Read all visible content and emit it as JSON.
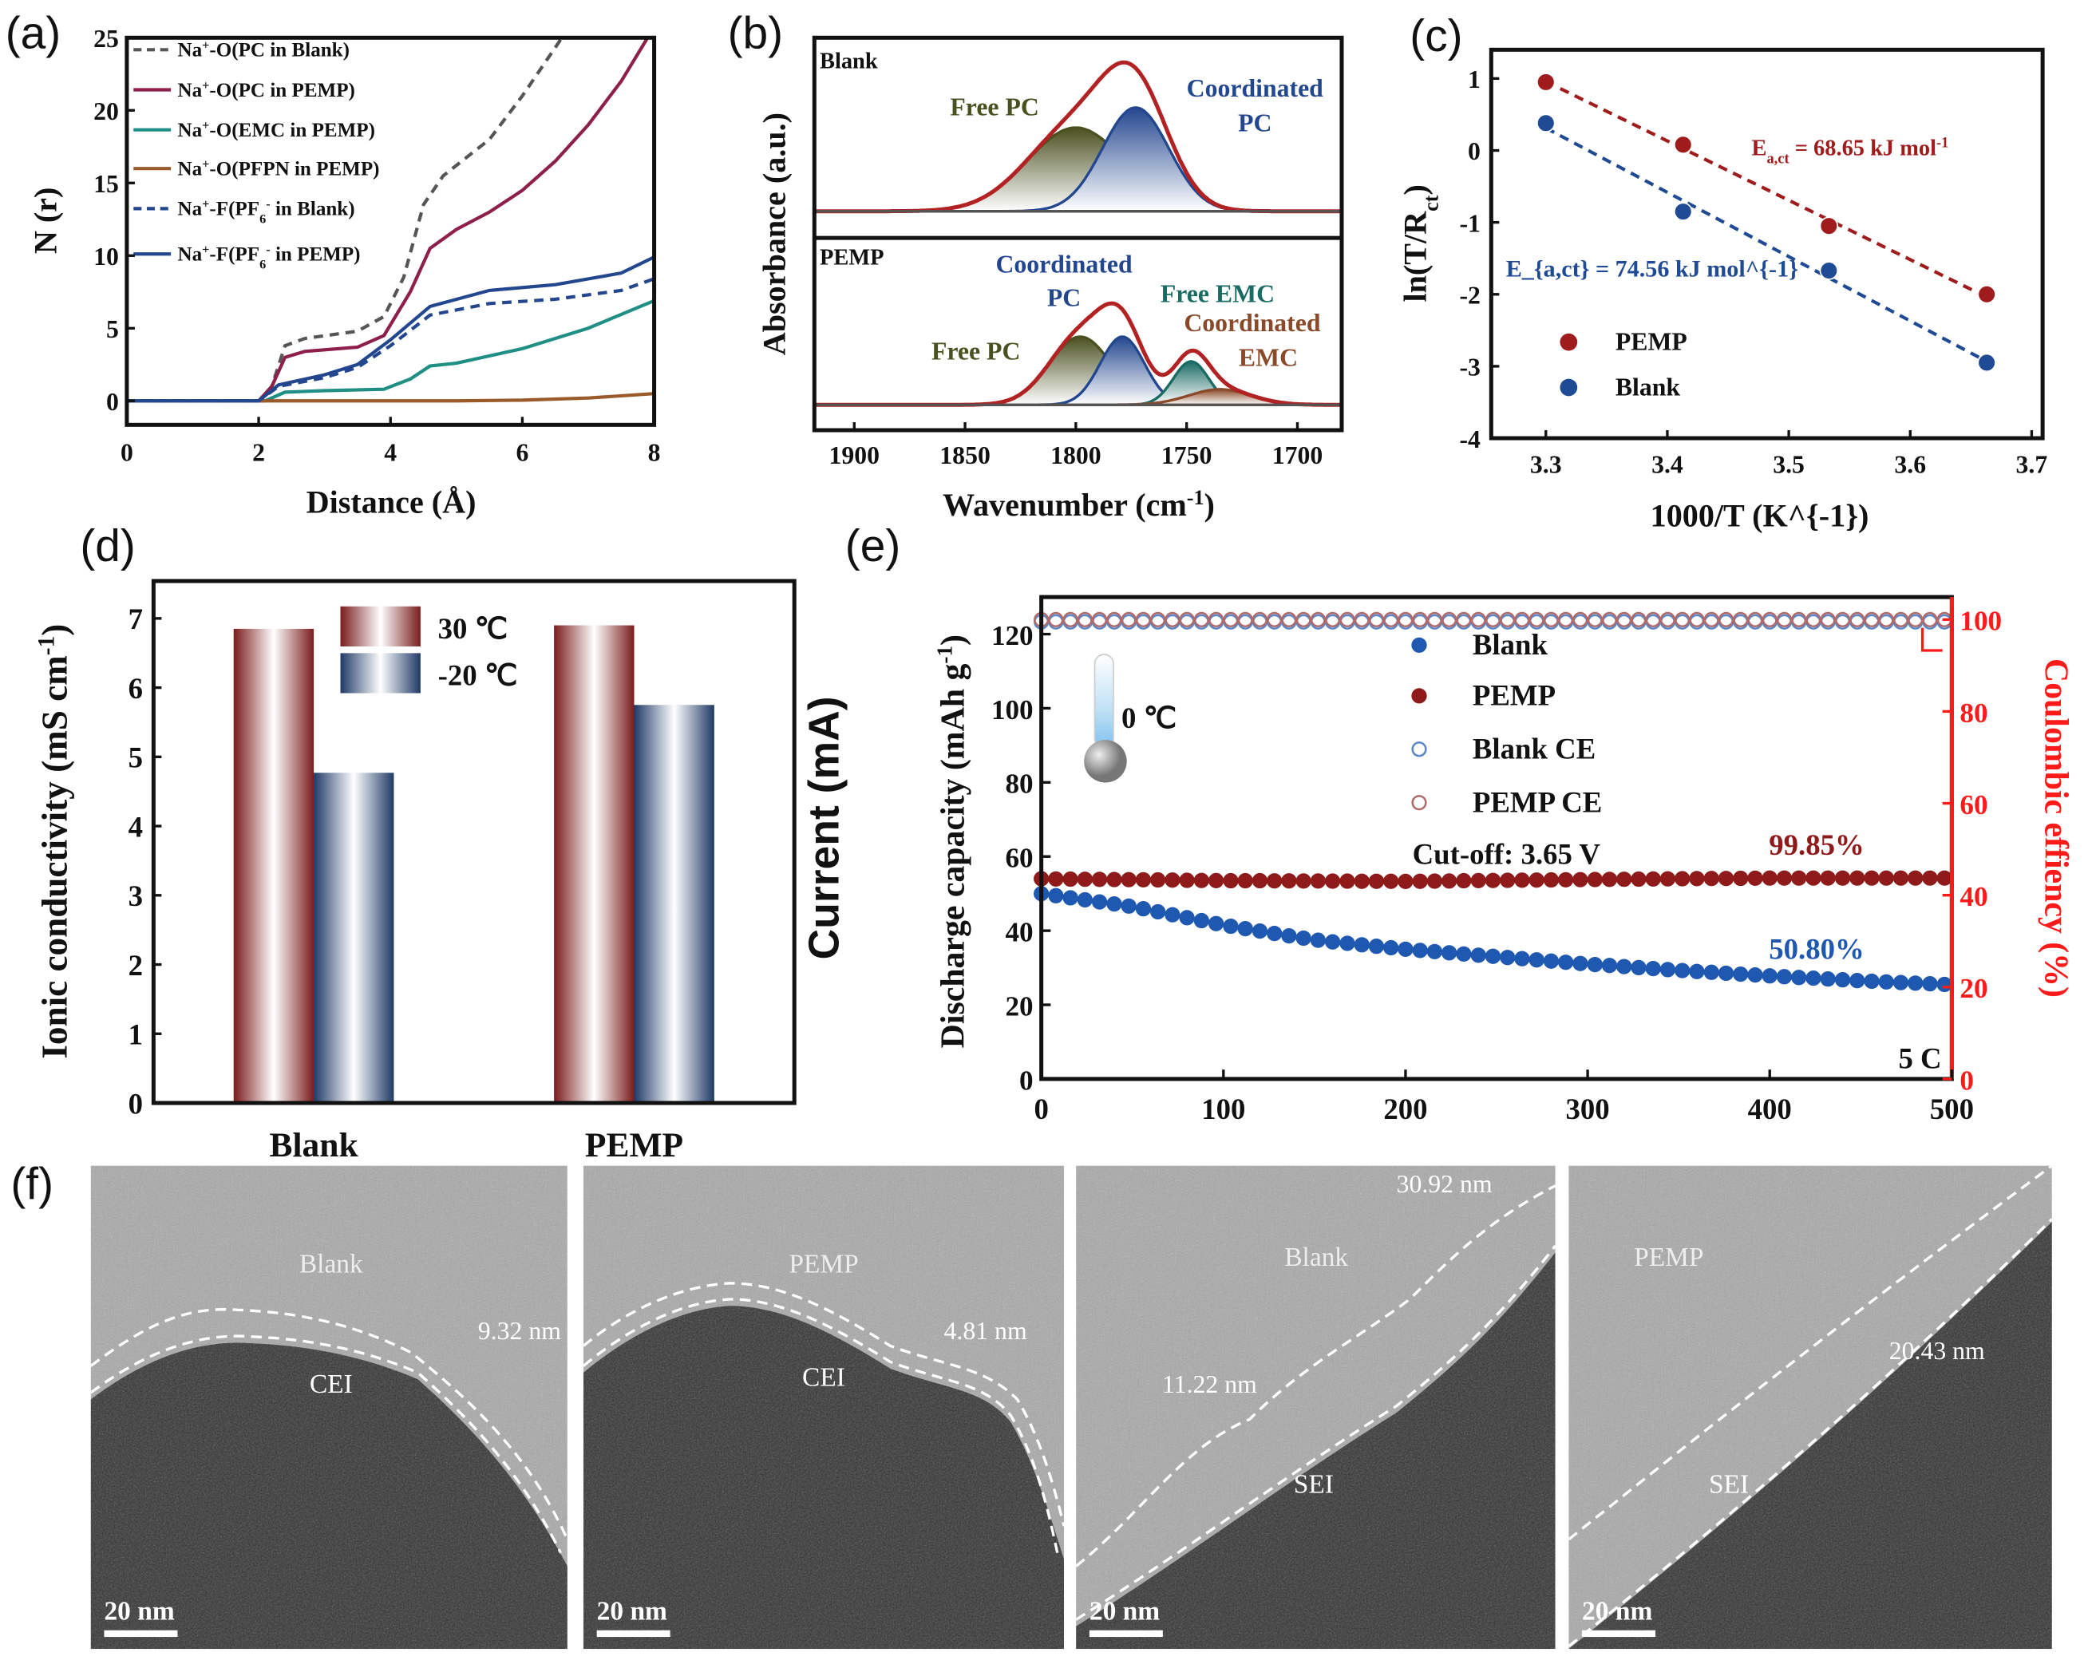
{
  "panel_labels": [
    "(a)",
    "(b)",
    "(c)",
    "(d)",
    "(e)",
    "(f)"
  ],
  "colors": {
    "maroon": "#8e1f4a",
    "gray": "#555555",
    "teal": "#1f8f86",
    "brown": "#9a5a2a",
    "navy": "#23478f",
    "red_series": "#a01c1c",
    "blue_series": "#1f58b0",
    "ce_axis": "#ff1a1a",
    "olive": "#4a5020"
  },
  "chart_data": [
    {
      "panel": "(a)",
      "type": "line",
      "xlabel": "Distance (Å)",
      "ylabel": "N (r)",
      "xlim": [
        0,
        8
      ],
      "ylim": [
        -1.65,
        25
      ],
      "xticks": [
        "0",
        "2",
        "4",
        "6",
        "8"
      ],
      "yticks": [
        "0",
        "5",
        "10",
        "15",
        "20",
        "25"
      ],
      "legend_position": "top-left",
      "series": [
        {
          "name": "Na^{+}-O(PC in Blank)",
          "style": "dashed",
          "color": "#555555",
          "points": [
            [
              0,
              0
            ],
            [
              2,
              0
            ],
            [
              2.2,
              1
            ],
            [
              2.4,
              3.8
            ],
            [
              2.7,
              4.3
            ],
            [
              3.5,
              4.8
            ],
            [
              3.9,
              5.8
            ],
            [
              4.2,
              8.5
            ],
            [
              4.5,
              13.5
            ],
            [
              4.8,
              15.5
            ],
            [
              5.5,
              18
            ],
            [
              6,
              21
            ],
            [
              6.6,
              25
            ]
          ]
        },
        {
          "name": "Na^{+}-O(PC in PEMP)",
          "style": "solid",
          "color": "#8e1f4a",
          "points": [
            [
              0,
              0
            ],
            [
              2,
              0
            ],
            [
              2.2,
              1
            ],
            [
              2.4,
              3
            ],
            [
              2.7,
              3.4
            ],
            [
              3.5,
              3.7
            ],
            [
              3.9,
              4.5
            ],
            [
              4.3,
              7.5
            ],
            [
              4.6,
              10.5
            ],
            [
              5,
              11.8
            ],
            [
              5.5,
              13
            ],
            [
              6,
              14.5
            ],
            [
              6.5,
              16.5
            ],
            [
              7,
              19
            ],
            [
              7.5,
              22
            ],
            [
              7.9,
              25
            ]
          ]
        },
        {
          "name": "Na^{+}-O(EMC in PEMP)",
          "style": "solid",
          "color": "#1f8f86",
          "points": [
            [
              0,
              0
            ],
            [
              2.1,
              0
            ],
            [
              2.4,
              0.6
            ],
            [
              3,
              0.7
            ],
            [
              3.9,
              0.8
            ],
            [
              4.3,
              1.5
            ],
            [
              4.6,
              2.4
            ],
            [
              5,
              2.6
            ],
            [
              6,
              3.6
            ],
            [
              7,
              5
            ],
            [
              8,
              6.9
            ]
          ]
        },
        {
          "name": "Na^{+}-O(PFPN in PEMP)",
          "style": "solid",
          "color": "#9a5a2a",
          "points": [
            [
              0,
              0
            ],
            [
              5,
              0
            ],
            [
              6,
              0.05
            ],
            [
              7,
              0.2
            ],
            [
              8,
              0.5
            ]
          ]
        },
        {
          "name": "Na^{+}-F(PF_{6}^{-} in Blank)",
          "style": "dashed",
          "color": "#23478f",
          "points": [
            [
              0,
              0
            ],
            [
              2,
              0
            ],
            [
              2.3,
              1
            ],
            [
              3,
              1.6
            ],
            [
              3.5,
              2.3
            ],
            [
              4,
              3.8
            ],
            [
              4.6,
              5.9
            ],
            [
              5.5,
              6.7
            ],
            [
              6.5,
              7
            ],
            [
              7.5,
              7.6
            ],
            [
              8,
              8.4
            ]
          ]
        },
        {
          "name": "Na^{+}-F(PF_{6}^{-} in PEMP)",
          "style": "solid",
          "color": "#23478f",
          "points": [
            [
              0,
              0
            ],
            [
              2,
              0
            ],
            [
              2.3,
              1.1
            ],
            [
              3,
              1.8
            ],
            [
              3.5,
              2.5
            ],
            [
              4,
              4.2
            ],
            [
              4.6,
              6.5
            ],
            [
              5.5,
              7.6
            ],
            [
              6.5,
              8
            ],
            [
              7.5,
              8.8
            ],
            [
              8,
              9.9
            ]
          ]
        }
      ]
    },
    {
      "panel": "(b)",
      "type": "area",
      "xlabel": "Wavenumber (cm^{-1})",
      "ylabel": "Absorbance (a.u.)",
      "xlim": [
        1918,
        1680
      ],
      "x_reversed": true,
      "xticks": [
        "1900",
        "1850",
        "1800",
        "1750",
        "1700"
      ],
      "subplots": [
        {
          "title": "Blank",
          "components": [
            {
              "label": "Free PC",
              "center": 1800,
              "height": 0.54,
              "width": 22,
              "color": "#4a5020"
            },
            {
              "label": "Coordinated PC",
              "center": 1773,
              "height": 0.67,
              "width": 15,
              "color": "#23478f"
            }
          ],
          "total_color": "#b22222"
        },
        {
          "title": "PEMP",
          "components": [
            {
              "label": "Free PC",
              "center": 1798,
              "height": 0.44,
              "width": 14,
              "color": "#4a5020"
            },
            {
              "label": "Coordinated PC",
              "center": 1779,
              "height": 0.44,
              "width": 10,
              "color": "#23478f"
            },
            {
              "label": "Free EMC",
              "center": 1748,
              "height": 0.28,
              "width": 8,
              "color": "#1a6b63"
            },
            {
              "label": "Coordinated EMC",
              "center": 1735,
              "height": 0.1,
              "width": 14,
              "color": "#8a4a2a"
            }
          ],
          "total_color": "#b22222"
        }
      ],
      "annotations": {
        "blank_free_pc": "Free PC",
        "blank_coord_1": "Coordinated",
        "blank_coord_2": "PC",
        "pemp_coord_1": "Coordinated",
        "pemp_coord_2": "PC",
        "pemp_free_emc": "Free EMC",
        "pemp_coord_emc_1": "Coordinated",
        "pemp_coord_emc_2": "EMC",
        "pemp_free_pc": "Free PC"
      }
    },
    {
      "panel": "(c)",
      "type": "scatter",
      "xlabel": "1000/T (K^{-1})",
      "ylabel": "ln(T/R_{ct})",
      "xlim": [
        3.255,
        3.709
      ],
      "ylim": [
        -4,
        1.4
      ],
      "xticks": [
        "3.3",
        "3.4",
        "3.5",
        "3.6",
        "3.7"
      ],
      "yticks": [
        "-4",
        "-3",
        "-2",
        "-1",
        "0",
        "1"
      ],
      "legend_position": "bottom-left",
      "series": [
        {
          "name": "PEMP",
          "color": "#a01c1c",
          "x": [
            3.3,
            3.413,
            3.533,
            3.663
          ],
          "y": [
            0.95,
            0.08,
            -1.05,
            -2.0
          ],
          "fit_label": "E_{a,ct} = 68.65 kJ mol^{-1}"
        },
        {
          "name": "Blank",
          "color": "#1f4a94",
          "x": [
            3.3,
            3.413,
            3.533,
            3.663
          ],
          "y": [
            0.38,
            -0.85,
            -1.67,
            -2.95
          ],
          "fit_label": "E_{a,ct} = 74.56 kJ mol^{-1}"
        }
      ]
    },
    {
      "panel": "(d)",
      "type": "bar",
      "ylabel": "Ionic conductivity (mS cm^{-1})",
      "categories": [
        "Blank",
        "PEMP"
      ],
      "ylim": [
        0,
        7.54
      ],
      "yticks": [
        "0",
        "1",
        "2",
        "3",
        "4",
        "5",
        "6",
        "7"
      ],
      "legend_position": "top-center",
      "series": [
        {
          "name": "30 ℃",
          "color": "#8b2a2a",
          "values": [
            6.85,
            6.9
          ]
        },
        {
          "name": "-20 ℃",
          "color": "#2a4470",
          "values": [
            4.77,
            5.75
          ]
        }
      ]
    },
    {
      "panel": "(e)",
      "type": "scatter",
      "outer_label": "Current (mA)",
      "ylabel": "Discharge capacity (mAh g^{-1})",
      "y2label": "Coulombic effiency (%)",
      "xlim": [
        0,
        500
      ],
      "ylim": [
        0,
        130
      ],
      "y2lim": [
        0,
        104.9
      ],
      "xticks": [
        "0",
        "100",
        "200",
        "300",
        "400",
        "500"
      ],
      "yticks": [
        "0",
        "20",
        "40",
        "60",
        "80",
        "100",
        "120"
      ],
      "y2ticks": [
        "0",
        "20",
        "40",
        "60",
        "80",
        "100"
      ],
      "legend_position": "top-center",
      "series": [
        {
          "name": "Blank",
          "marker": "filled",
          "color": "#1f58b0",
          "axis": "left",
          "x": [
            0,
            50,
            100,
            150,
            200,
            250,
            300,
            350,
            400,
            450,
            500
          ],
          "y": [
            50,
            46.5,
            41.5,
            37.5,
            35,
            33,
            31,
            29.3,
            27.8,
            26.5,
            25.4
          ]
        },
        {
          "name": "PEMP",
          "marker": "filled",
          "color": "#8e1a1a",
          "axis": "left",
          "x": [
            0,
            100,
            200,
            300,
            400,
            500
          ],
          "y": [
            54,
            53.5,
            53.3,
            53.8,
            54.2,
            54.2
          ]
        },
        {
          "name": "Blank CE",
          "marker": "open",
          "color": "#5b86c8",
          "axis": "right",
          "x": [
            0,
            500
          ],
          "y": [
            99.5,
            99.5
          ]
        },
        {
          "name": "PEMP CE",
          "marker": "open",
          "color": "#b06a6a",
          "axis": "right",
          "x": [
            0,
            500
          ],
          "y": [
            100,
            100
          ]
        }
      ],
      "annotations": {
        "temperature": "0 ℃",
        "cutoff": "Cut-off: 3.65 V",
        "pemp_retention": "99.85%",
        "blank_retention": "50.80%",
        "rate": "5 C"
      }
    }
  ],
  "tem_images": [
    {
      "sample": "Blank",
      "layer": "CEI",
      "thickness": "9.32 nm",
      "scale_bar": "20 nm"
    },
    {
      "sample": "PEMP",
      "layer": "CEI",
      "thickness": "4.81 nm",
      "scale_bar": "20 nm"
    },
    {
      "sample": "Blank",
      "layer": "SEI",
      "thickness": "30.92 nm",
      "thickness_2": "11.22 nm",
      "scale_bar": "20 nm"
    },
    {
      "sample": "PEMP",
      "layer": "SEI",
      "thickness": "20.43 nm",
      "scale_bar": "20 nm"
    }
  ]
}
